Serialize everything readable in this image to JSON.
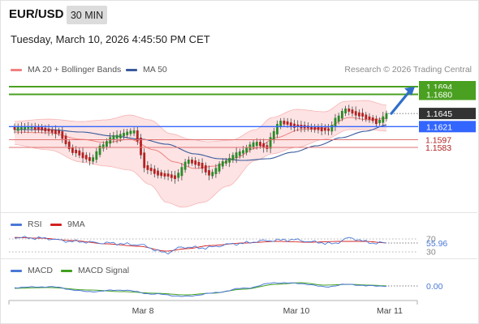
{
  "header": {
    "symbol": "EUR/USD",
    "timeframe": "30 MIN",
    "datetime": "Tuesday, March 10, 2026 4:45:50 PM CET"
  },
  "legend": {
    "bollinger_label": "MA 20 + Bollinger Bands",
    "ma50_label": "MA 50",
    "credit": "Research © 2026 Trading Central"
  },
  "colors": {
    "candle_up": "#2a8a2a",
    "candle_down": "#b22222",
    "bollinger": "#f08080",
    "bollinger_fill": "#fde3e3",
    "ma50": "#3a5a9c",
    "support_resistance": "#4aa020",
    "current_price": "#3366ff",
    "target_arrow": "#2f6fc9",
    "rsi": "#4a78d6",
    "rsi_ma": "#d22020",
    "macd": "#4a78d6",
    "macd_signal": "#40a020"
  },
  "chart_data": [
    {
      "type": "candlestick",
      "ylim": [
        1.5548,
        1.1732
      ],
      "price_labels": [
        {
          "value": 1.1694,
          "text": "1.1694",
          "style": "green-box"
        },
        {
          "value": 1.168,
          "text": "1.1680",
          "style": "green-box"
        },
        {
          "value": 1.1645,
          "text": "1.1645",
          "style": "dark-box"
        },
        {
          "value": 1.1621,
          "text": "1.1621",
          "style": "blue-box"
        },
        {
          "value": 1.1597,
          "text": "1.1597",
          "style": "red-text"
        },
        {
          "value": 1.1583,
          "text": "1.1583",
          "style": "red-text"
        }
      ],
      "levels": [
        {
          "value": 1.1694,
          "kind": "resistance"
        },
        {
          "value": 1.168,
          "kind": "resistance"
        },
        {
          "value": 1.1621,
          "kind": "current"
        },
        {
          "value": 1.1597,
          "kind": "support"
        },
        {
          "value": 1.1583,
          "kind": "support"
        }
      ],
      "target_arrow": {
        "from": 1.1645,
        "to": 1.1694
      }
    },
    {
      "type": "line",
      "name": "RSI",
      "series": [
        {
          "name": "RSI"
        },
        {
          "name": "9MA"
        }
      ],
      "levels": [
        70,
        30
      ],
      "level_labels": [
        "70",
        "30"
      ],
      "current_value": 55.96,
      "current_label": "55.96"
    },
    {
      "type": "line",
      "name": "MACD",
      "series": [
        {
          "name": "MACD"
        },
        {
          "name": "MACD Signal"
        }
      ],
      "current_value": 0.0,
      "current_label": "0.00"
    }
  ],
  "x_axis": {
    "tick_labels": [
      "Mar 8",
      "Mar 10",
      "Mar 11"
    ]
  }
}
